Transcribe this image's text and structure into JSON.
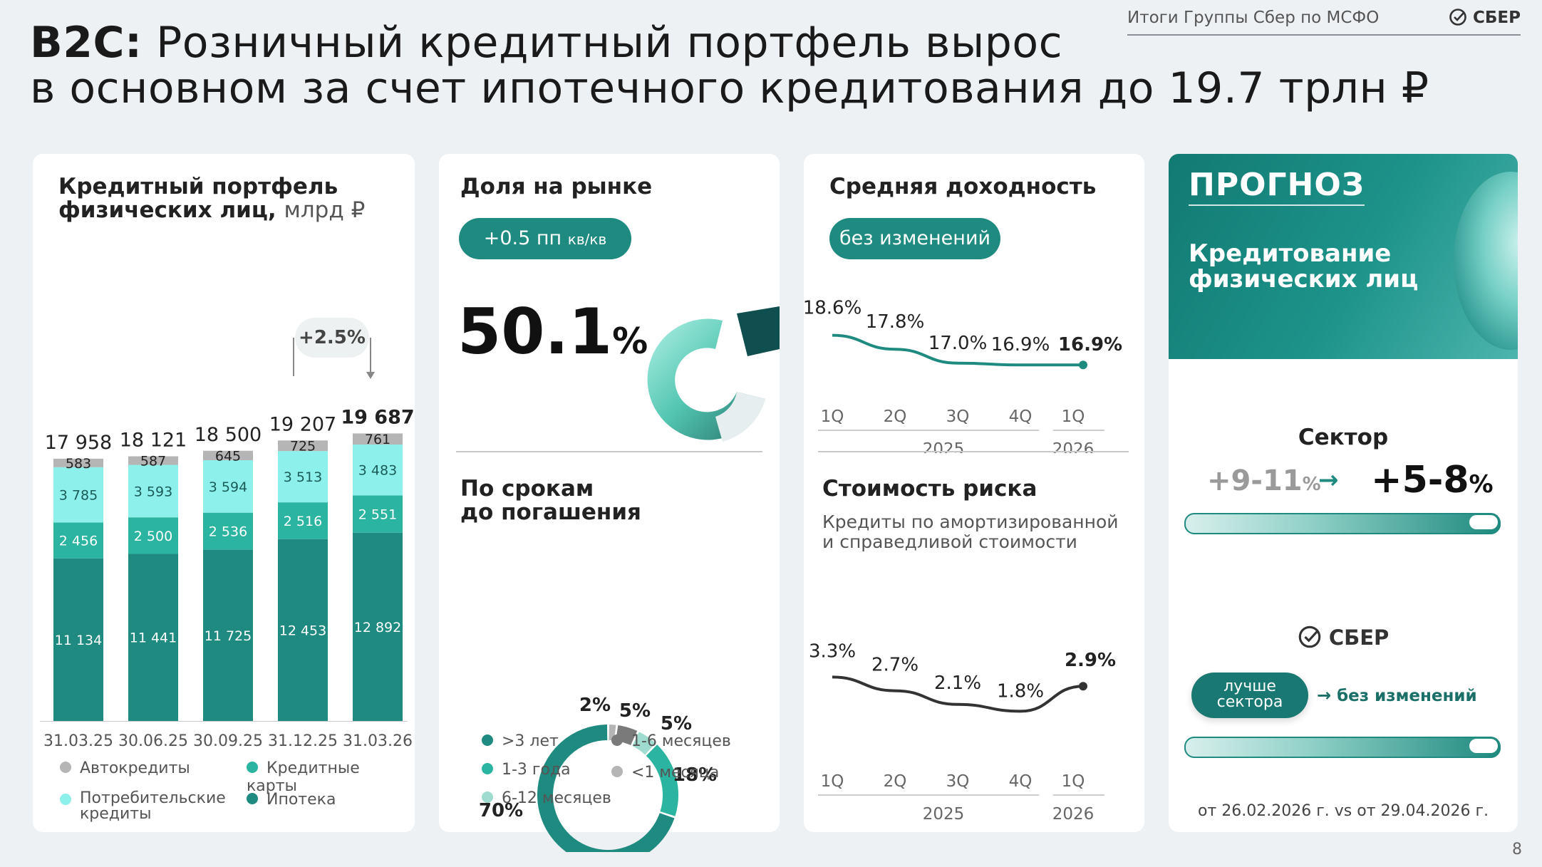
{
  "header": {
    "title_bold": "B2C:",
    "title_line1": "Розничный кредитный портфель вырос",
    "title_line2": "в основном за счет ипотечного кредитования до 19.7 трлн ₽",
    "subtitle": "Итоги Группы Сбер по МСФО",
    "logo_text": "СБЕР",
    "page_number": "8"
  },
  "portfolio": {
    "title_bold": "Кредитный портфель физических лиц,",
    "title_unit": "млрд ₽",
    "growth_label": "+2.5%",
    "legend": [
      {
        "label": "Автокредиты",
        "color": "#b5b5b5"
      },
      {
        "label": "Кредитные карты",
        "color": "#2bb5a0"
      },
      {
        "label": "Потребительские кредиты",
        "color": "#8ef0ea"
      },
      {
        "label": "Ипотека",
        "color": "#1f8a7f"
      }
    ]
  },
  "market_share": {
    "title": "Доля на рынке",
    "pill_value": "+0.5 пп",
    "pill_unit": "кв/кв",
    "value": "50.1",
    "unit": "%"
  },
  "maturity": {
    "title_line1": "По срокам",
    "title_line2": "до погашения",
    "legend": [
      {
        "label": ">3 лет",
        "color": "#1f8a7f"
      },
      {
        "label": "1-6 месяцев",
        "color": "#7a7a7a"
      },
      {
        "label": "1-3 года",
        "color": "#2bb5a0"
      },
      {
        "label": "<1 месяца",
        "color": "#b5b5b5"
      },
      {
        "label": "6-12 месяцев",
        "color": "#9fdccf"
      }
    ]
  },
  "yield": {
    "title": "Средняя доходность",
    "pill": "без изменений"
  },
  "risk": {
    "title": "Стоимость риска",
    "subtitle_line1": "Кредиты по амортизированной",
    "subtitle_line2": "и справедливой стоимости"
  },
  "forecast": {
    "title": "ПРОГНОЗ",
    "subtitle_line1": "Кредитование",
    "subtitle_line2": "физических лиц",
    "sector_label": "Сектор",
    "old_value": "+9-11",
    "old_unit": "%",
    "arrow": "→",
    "new_value": "+5-8",
    "new_unit": "%",
    "sber_label": "СБЕР",
    "better_pill_line1": "лучше",
    "better_pill_line2": "сектора",
    "no_change": "без изменений",
    "footnote": "от 26.02.2026 г. vs от 29.04.2026 г."
  },
  "colors": {
    "mortgage": "#1f8a7f",
    "cards": "#2bb5a0",
    "consumer": "#8ef0ea",
    "auto": "#b5b5b5",
    "accent": "#1f8a7f"
  },
  "chart_data": [
    {
      "type": "bar",
      "stacked": true,
      "categories": [
        "31.03.25",
        "30.06.25",
        "30.09.25",
        "31.12.25",
        "31.03.26"
      ],
      "totals": [
        "17 958",
        "18 121",
        "18 500",
        "19 207",
        "19 687"
      ],
      "series": [
        {
          "name": "Ипотека",
          "values": [
            11134,
            11441,
            11725,
            12453,
            12892
          ],
          "labels": [
            "11 134",
            "11 441",
            "11 725",
            "12 453",
            "12 892"
          ]
        },
        {
          "name": "Кредитные карты",
          "values": [
            2456,
            2500,
            2536,
            2516,
            2551
          ],
          "labels": [
            "2 456",
            "2 500",
            "2 536",
            "2 516",
            "2 551"
          ]
        },
        {
          "name": "Потребительские кредиты",
          "values": [
            3785,
            3593,
            3594,
            3513,
            3483
          ],
          "labels": [
            "3 785",
            "3 593",
            "3 594",
            "3 513",
            "3 483"
          ]
        },
        {
          "name": "Автокредиты",
          "values": [
            583,
            587,
            645,
            725,
            761
          ],
          "labels": [
            "583",
            "587",
            "645",
            "725",
            "761"
          ]
        }
      ]
    },
    {
      "type": "pie",
      "donut": true,
      "categories": [
        ">3 лет",
        "1-3 года",
        "6-12 месяцев",
        "1-6 месяцев",
        "<1 месяца"
      ],
      "values": [
        70,
        18,
        5,
        5,
        2
      ],
      "labels": [
        "70%",
        "18%",
        "5%",
        "5%",
        "2%"
      ]
    },
    {
      "type": "line",
      "x": [
        "1Q",
        "2Q",
        "3Q",
        "4Q",
        "1Q"
      ],
      "year_labels": [
        "2025",
        "2026"
      ],
      "values": [
        18.6,
        17.8,
        17.0,
        16.9,
        16.9
      ],
      "labels": [
        "18.6%",
        "17.8%",
        "17.0%",
        "16.9%",
        "16.9%"
      ]
    },
    {
      "type": "line",
      "x": [
        "1Q",
        "2Q",
        "3Q",
        "4Q",
        "1Q"
      ],
      "year_labels": [
        "2025",
        "2026"
      ],
      "values": [
        3.3,
        2.7,
        2.1,
        1.8,
        2.9
      ],
      "labels": [
        "3.3%",
        "2.7%",
        "2.1%",
        "1.8%",
        "2.9%"
      ]
    }
  ]
}
